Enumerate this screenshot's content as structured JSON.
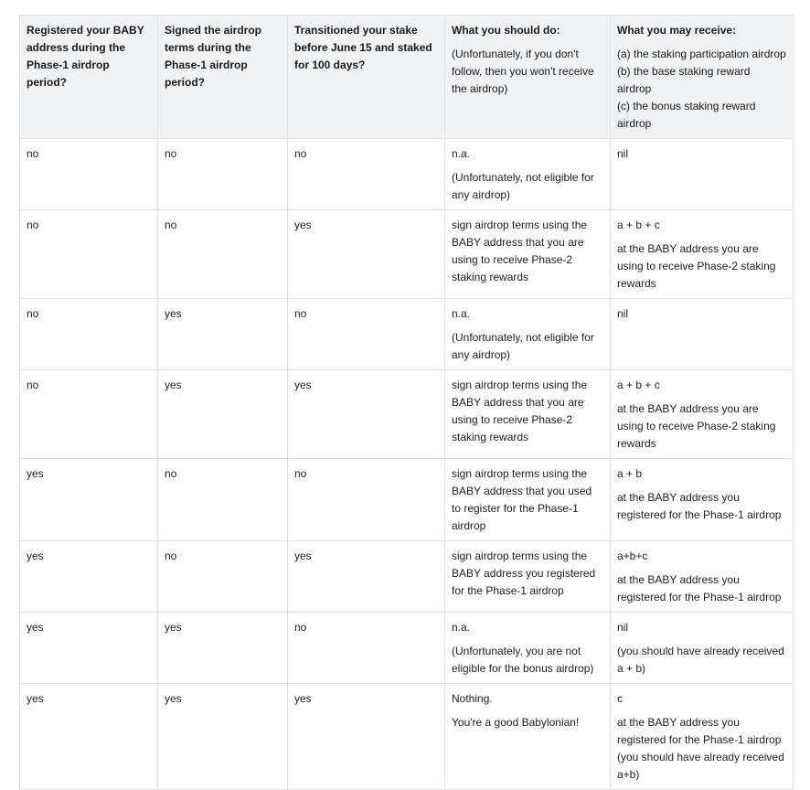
{
  "table": {
    "headers": [
      [
        [
          "Registered your BABY address during the Phase-1 airdrop period?"
        ]
      ],
      [
        [
          "Signed the airdrop terms during the Phase-1 airdrop period?"
        ]
      ],
      [
        [
          "Transitioned your stake before June 15 and staked for 100 days?"
        ]
      ],
      [
        [
          "What you should do:"
        ],
        [
          "(Unfortunately, if you don't follow, then you won't receive the airdrop)"
        ]
      ],
      [
        [
          "What you may receive:"
        ],
        [
          "(a) the staking participation airdrop",
          "(b) the base staking reward airdrop",
          "(c) the bonus staking reward airdrop"
        ]
      ]
    ],
    "rows": [
      [
        [
          [
            "no"
          ]
        ],
        [
          [
            "no"
          ]
        ],
        [
          [
            "no"
          ]
        ],
        [
          [
            "n.a."
          ],
          [
            "(Unfortunately, not eligible for any airdrop)"
          ]
        ],
        [
          [
            "nil"
          ]
        ]
      ],
      [
        [
          [
            "no"
          ]
        ],
        [
          [
            "no"
          ]
        ],
        [
          [
            "yes"
          ]
        ],
        [
          [
            "sign airdrop terms using the BABY address that you are using to receive Phase-2 staking rewards"
          ]
        ],
        [
          [
            "a + b + c"
          ],
          [
            "at the BABY address you are using to receive Phase-2 staking rewards"
          ]
        ]
      ],
      [
        [
          [
            "no"
          ]
        ],
        [
          [
            "yes"
          ]
        ],
        [
          [
            "no"
          ]
        ],
        [
          [
            "n.a."
          ],
          [
            "(Unfortunately, not eligible for any airdrop)"
          ]
        ],
        [
          [
            "nil"
          ]
        ]
      ],
      [
        [
          [
            "no"
          ]
        ],
        [
          [
            "yes"
          ]
        ],
        [
          [
            "yes"
          ]
        ],
        [
          [
            "sign airdrop terms using the BABY address that you are using to receive Phase-2 staking rewards"
          ]
        ],
        [
          [
            "a + b + c"
          ],
          [
            "at the BABY address you are using to receive Phase-2 staking rewards"
          ]
        ]
      ],
      [
        [
          [
            "yes"
          ]
        ],
        [
          [
            "no"
          ]
        ],
        [
          [
            "no"
          ]
        ],
        [
          [
            "sign airdrop terms using the BABY address that you used to register for the Phase-1  airdrop"
          ]
        ],
        [
          [
            "a + b"
          ],
          [
            "at the BABY address you registered for the Phase-1 airdrop"
          ]
        ]
      ],
      [
        [
          [
            "yes"
          ]
        ],
        [
          [
            "no"
          ]
        ],
        [
          [
            "yes"
          ]
        ],
        [
          [
            "sign airdrop terms using the BABY address you registered for the Phase-1 airdrop"
          ]
        ],
        [
          [
            "a+b+c"
          ],
          [
            "at the BABY address you registered for the Phase-1 airdrop"
          ]
        ]
      ],
      [
        [
          [
            "yes"
          ]
        ],
        [
          [
            "yes"
          ]
        ],
        [
          [
            "no"
          ]
        ],
        [
          [
            "n.a."
          ],
          [
            "(Unfortunately, you are not eligible for the bonus airdrop)"
          ]
        ],
        [
          [
            "nil"
          ],
          [
            "(you should have already received a + b)"
          ]
        ]
      ],
      [
        [
          [
            "yes"
          ]
        ],
        [
          [
            "yes"
          ]
        ],
        [
          [
            "yes"
          ]
        ],
        [
          [
            "Nothing."
          ],
          [
            "You're a good Babylonian!"
          ]
        ],
        [
          [
            "c"
          ],
          [
            "at the BABY address you registered for the Phase-1 airdrop",
            "(you should have already received a+b)"
          ]
        ]
      ]
    ]
  }
}
